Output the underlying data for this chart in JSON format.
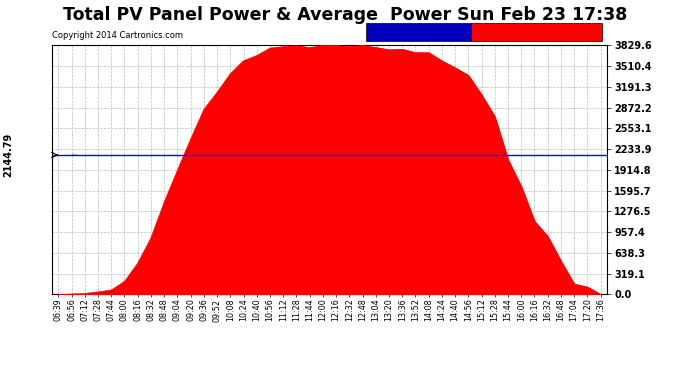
{
  "title": "Total PV Panel Power & Average  Power Sun Feb 23 17:38",
  "copyright": "Copyright 2014 Cartronics.com",
  "average_value": 2144.79,
  "y_max": 3829.6,
  "y_ticks": [
    0.0,
    319.1,
    638.3,
    957.4,
    1276.5,
    1595.7,
    1914.8,
    2233.9,
    2553.1,
    2872.2,
    3191.3,
    3510.4,
    3829.6
  ],
  "avg_label": "2144.79",
  "bg_color": "#ffffff",
  "plot_bg_color": "#ffffff",
  "fill_color": "#ff0000",
  "line_color": "#ff0000",
  "avg_line_color": "#0000ff",
  "grid_color": "#bbbbbb",
  "title_fontsize": 13,
  "legend_avg_color": "#0000bb",
  "legend_pv_color": "#ff0000",
  "x_labels": [
    "06:39",
    "06:56",
    "07:12",
    "07:28",
    "07:44",
    "08:00",
    "08:16",
    "08:32",
    "08:48",
    "09:04",
    "09:20",
    "09:36",
    "09:52",
    "10:08",
    "10:24",
    "10:40",
    "10:56",
    "11:12",
    "11:28",
    "11:44",
    "12:00",
    "12:16",
    "12:32",
    "12:48",
    "13:04",
    "13:20",
    "13:36",
    "13:52",
    "14:08",
    "14:24",
    "14:40",
    "14:56",
    "15:12",
    "15:28",
    "15:44",
    "16:00",
    "16:16",
    "16:32",
    "16:48",
    "17:04",
    "17:20",
    "17:36"
  ],
  "power_values": [
    0,
    5,
    12,
    30,
    80,
    200,
    480,
    900,
    1400,
    1900,
    2400,
    2850,
    3100,
    3400,
    3600,
    3700,
    3780,
    3810,
    3820,
    3825,
    3829,
    3826,
    3820,
    3810,
    3800,
    3790,
    3780,
    3760,
    3700,
    3600,
    3500,
    3350,
    3100,
    2700,
    2200,
    1700,
    1200,
    800,
    400,
    180,
    60,
    10
  ]
}
